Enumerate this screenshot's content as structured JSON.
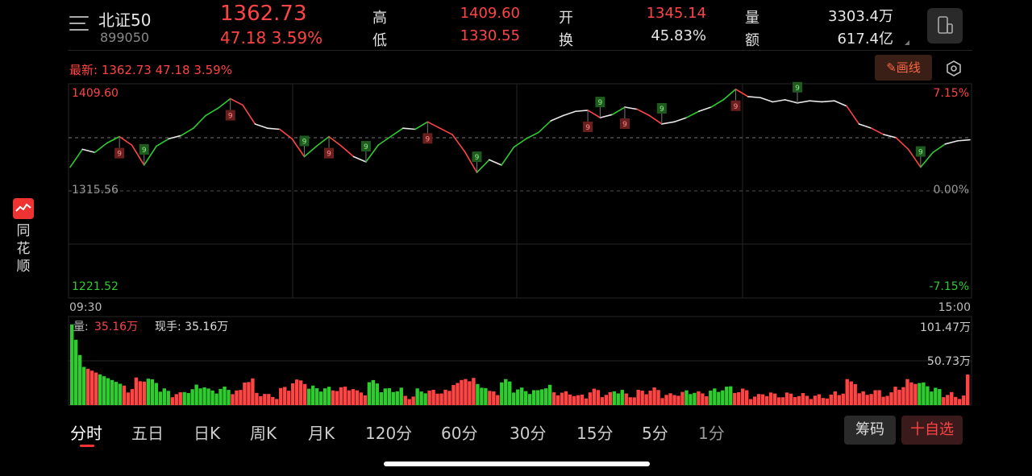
{
  "header": {
    "stock_name": "北证50",
    "stock_code": "899050",
    "price": "1362.73",
    "change": "47.18  3.59%",
    "stats": [
      {
        "label": "高",
        "value": "1409.60",
        "color": "#ff4444"
      },
      {
        "label": "低",
        "value": "1330.55",
        "color": "#ff4444"
      },
      {
        "label": "开",
        "value": "1345.14",
        "color": "#ff4444"
      },
      {
        "label": "换",
        "value": "45.83%",
        "color": "#e6e6e6"
      },
      {
        "label": "量",
        "value": "3303.4万",
        "color": "#e6e6e6"
      },
      {
        "label": "额",
        "value": "617.4亿",
        "color": "#e6e6e6"
      }
    ]
  },
  "info_bar": {
    "latest": "最新: 1362.73  47.18  3.59%",
    "draw_line_label": "画线"
  },
  "chart": {
    "y_left_top": "1409.60",
    "y_left_mid": "1315.56",
    "y_left_bottom": "1221.52",
    "y_right_top": "7.15%",
    "y_right_mid": "0.00%",
    "y_right_bottom": "-7.15%",
    "x_start": "09:30",
    "x_end": "15:00",
    "volume_label_prefix": "量:",
    "volume_value": "35.16万",
    "current_hand": "现手: 35.16万",
    "volume_max": "101.47万",
    "volume_mid": "50.73万",
    "signal_label": "9"
  },
  "chart_data": {
    "type": "line",
    "title": "",
    "xlabel": "",
    "ylabel": "",
    "x_range": [
      "09:30",
      "15:00"
    ],
    "ylim": [
      1221.52,
      1409.6
    ],
    "prev_close": 1315.56,
    "series": [
      {
        "values": [
          1335,
          1352,
          1349,
          1358,
          1364,
          1356,
          1337,
          1355,
          1362,
          1365,
          1372,
          1384,
          1391,
          1400,
          1394,
          1376,
          1372,
          1371,
          1362,
          1345,
          1355,
          1364,
          1355,
          1345,
          1340,
          1356,
          1364,
          1372,
          1371,
          1378,
          1372,
          1366,
          1350,
          1330,
          1342,
          1337,
          1354,
          1362,
          1368,
          1379,
          1384,
          1388,
          1389,
          1382,
          1385,
          1392,
          1390,
          1384,
          1376,
          1378,
          1382,
          1388,
          1392,
          1399,
          1409,
          1402,
          1401,
          1397,
          1399,
          1396,
          1398,
          1397,
          1398,
          1393,
          1376,
          1372,
          1366,
          1363,
          1352,
          1335,
          1349,
          1357,
          1360,
          1361
        ]
      }
    ],
    "volume": {
      "ylim": [
        0,
        101.47
      ],
      "unit": "万"
    }
  },
  "sidebar": {
    "app_name": "同花顺"
  },
  "tabs": [
    {
      "label": "分时",
      "active": true
    },
    {
      "label": "五日",
      "active": false
    },
    {
      "label": "日K",
      "active": false
    },
    {
      "label": "周K",
      "active": false
    },
    {
      "label": "月K",
      "active": false
    },
    {
      "label": "120分",
      "active": false
    },
    {
      "label": "60分",
      "active": false
    },
    {
      "label": "30分",
      "active": false
    },
    {
      "label": "15分",
      "active": false
    },
    {
      "label": "5分",
      "active": false
    },
    {
      "label": "1分",
      "active": false
    }
  ],
  "actions": {
    "chips_label": "筹码",
    "watch_label": "十自选"
  },
  "colors": {
    "up": "#ff4444",
    "down": "#2fcc2f",
    "line": "#e8e8e8"
  }
}
